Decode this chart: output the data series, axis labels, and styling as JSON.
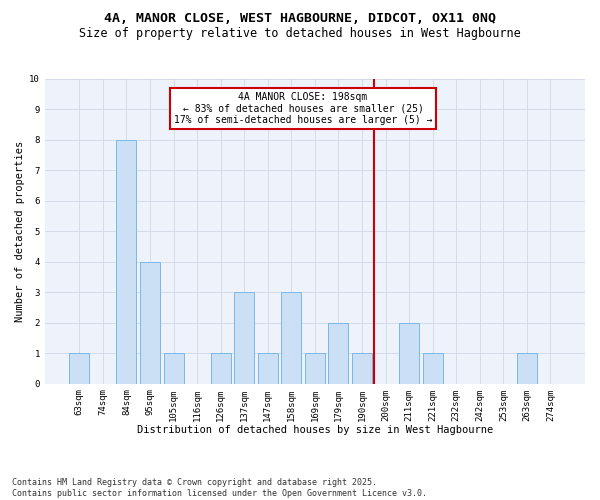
{
  "title_line1": "4A, MANOR CLOSE, WEST HAGBOURNE, DIDCOT, OX11 0NQ",
  "title_line2": "Size of property relative to detached houses in West Hagbourne",
  "xlabel": "Distribution of detached houses by size in West Hagbourne",
  "ylabel": "Number of detached properties",
  "categories": [
    "63sqm",
    "74sqm",
    "84sqm",
    "95sqm",
    "105sqm",
    "116sqm",
    "126sqm",
    "137sqm",
    "147sqm",
    "158sqm",
    "169sqm",
    "179sqm",
    "190sqm",
    "200sqm",
    "211sqm",
    "221sqm",
    "232sqm",
    "242sqm",
    "253sqm",
    "263sqm",
    "274sqm"
  ],
  "values": [
    1,
    0,
    8,
    4,
    1,
    0,
    1,
    3,
    1,
    3,
    1,
    2,
    1,
    0,
    2,
    1,
    0,
    0,
    0,
    1,
    0
  ],
  "bar_color": "#cce0f5",
  "bar_edge_color": "#7ab8e8",
  "grid_color": "#d0d8e8",
  "background_color": "#ffffff",
  "plot_bg_color": "#eef2fa",
  "vline_color": "#cc0000",
  "annotation_box_color": "#cc0000",
  "annotation_text_line1": "4A MANOR CLOSE: 198sqm",
  "annotation_text_line2": "← 83% of detached houses are smaller (25)",
  "annotation_text_line3": "17% of semi-detached houses are larger (5) →",
  "ylim": [
    0,
    10
  ],
  "yticks": [
    0,
    1,
    2,
    3,
    4,
    5,
    6,
    7,
    8,
    9,
    10
  ],
  "footnote": "Contains HM Land Registry data © Crown copyright and database right 2025.\nContains public sector information licensed under the Open Government Licence v3.0.",
  "title_fontsize": 9.5,
  "subtitle_fontsize": 8.5,
  "axis_label_fontsize": 7.5,
  "tick_fontsize": 6.5,
  "annotation_fontsize": 7,
  "footnote_fontsize": 6
}
